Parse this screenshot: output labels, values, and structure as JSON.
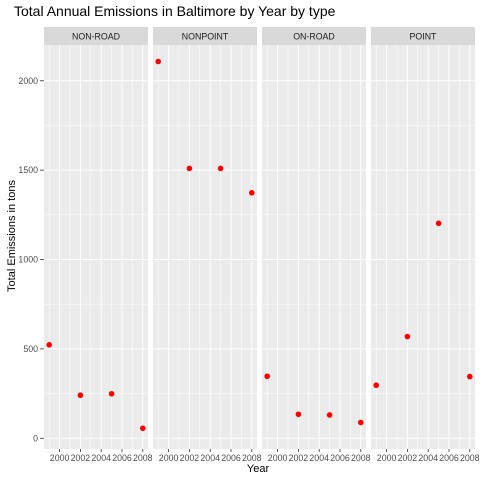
{
  "chart_data": {
    "type": "scatter",
    "title": "Total Annual Emissions in Baltimore by Year by type",
    "xlabel": "Year",
    "ylabel": "Total Emissions in tons",
    "xlim": [
      1998.5,
      2008.5
    ],
    "ylim": [
      -60,
      2200
    ],
    "x_ticks": [
      2000,
      2002,
      2004,
      2006,
      2008
    ],
    "y_ticks": [
      0,
      500,
      1000,
      1500,
      2000
    ],
    "point_color": "#ff0000",
    "panel_bg": "#ebebeb",
    "strip_bg": "#d9d9d9",
    "grid_color": "#ffffff",
    "grid": true,
    "facet_by": "type",
    "panels": [
      {
        "name": "NON-ROAD",
        "x": [
          1999,
          2002,
          2005,
          2008
        ],
        "y": [
          522.94,
          240.85,
          248.93,
          55.82
        ]
      },
      {
        "name": "NONPOINT",
        "x": [
          1999,
          2002,
          2005,
          2008
        ],
        "y": [
          2107.63,
          1509.5,
          1509.5,
          1373.21
        ]
      },
      {
        "name": "ON-ROAD",
        "x": [
          1999,
          2002,
          2005,
          2008
        ],
        "y": [
          346.82,
          134.31,
          130.43,
          88.28
        ]
      },
      {
        "name": "POINT",
        "x": [
          1999,
          2002,
          2005,
          2008
        ],
        "y": [
          296.8,
          569.26,
          1202.49,
          344.98
        ]
      }
    ]
  }
}
